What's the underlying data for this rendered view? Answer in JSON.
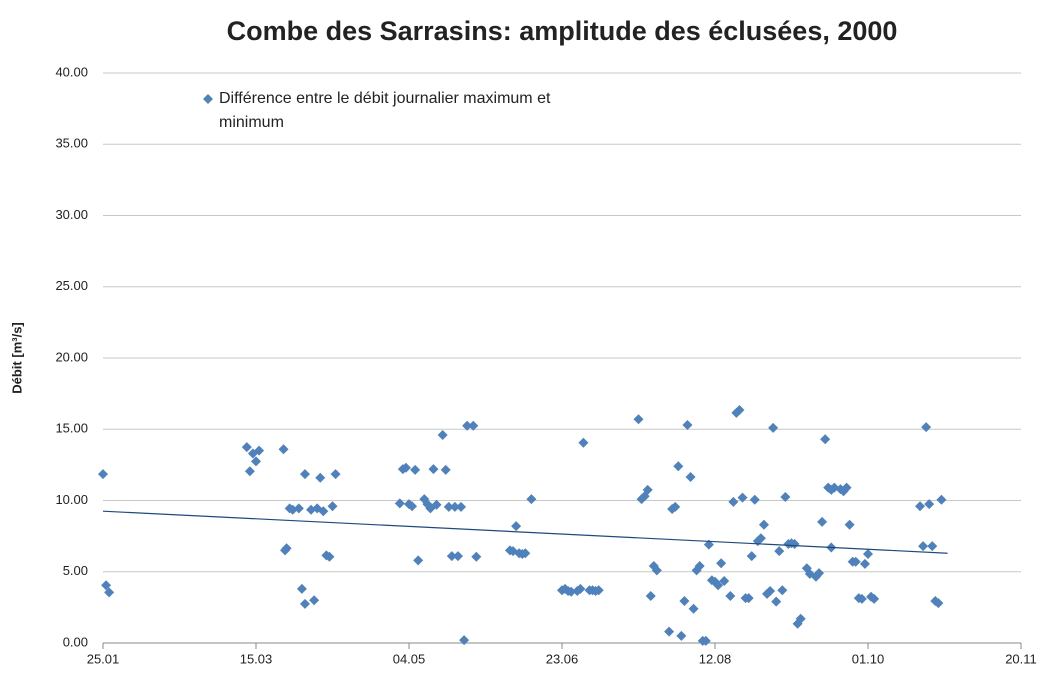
{
  "chart_data": {
    "type": "scatter",
    "title": "Combe des Sarrasins: amplitude des éclusées, 2000",
    "ylabel": "Débit [m³/s]",
    "xlim": [
      25,
      325
    ],
    "xticks": [
      {
        "value": 25,
        "label": "25.01"
      },
      {
        "value": 75,
        "label": "15.03"
      },
      {
        "value": 125,
        "label": "04.05"
      },
      {
        "value": 175,
        "label": "23.06"
      },
      {
        "value": 225,
        "label": "12.08"
      },
      {
        "value": 275,
        "label": "01.10"
      },
      {
        "value": 325,
        "label": "20.11"
      }
    ],
    "ylim": [
      0,
      40
    ],
    "yticks": [
      {
        "value": 0,
        "label": "0.00"
      },
      {
        "value": 5,
        "label": "5.00"
      },
      {
        "value": 10,
        "label": "10.00"
      },
      {
        "value": 15,
        "label": "15.00"
      },
      {
        "value": 20,
        "label": "20.00"
      },
      {
        "value": 25,
        "label": "25.00"
      },
      {
        "value": 30,
        "label": "30.00"
      },
      {
        "value": 35,
        "label": "35.00"
      },
      {
        "value": 40,
        "label": "40.00"
      }
    ],
    "grid": true,
    "series": [
      {
        "name": "Différence entre le débit journalier maximum et minimum",
        "color": "#4f81bd",
        "x": [
          25,
          26,
          27,
          72,
          73,
          74,
          75,
          76,
          84,
          84.5,
          85,
          86,
          87,
          89,
          90,
          91,
          91,
          93,
          94,
          95,
          96,
          97,
          98,
          99,
          100,
          101,
          122,
          123,
          124,
          125,
          126,
          127,
          128,
          130,
          131,
          132,
          133,
          134,
          136,
          137,
          138,
          139,
          140,
          141,
          142,
          143,
          144,
          146,
          147,
          158,
          159,
          160,
          161,
          162,
          163,
          165,
          175,
          176,
          177,
          178,
          180,
          181,
          182,
          184,
          185,
          186,
          187,
          200,
          201,
          202,
          203,
          204,
          205,
          206,
          210,
          211,
          212,
          213,
          214,
          215,
          216,
          217,
          218,
          219,
          220,
          221,
          222,
          223,
          224,
          225,
          226,
          227,
          228,
          230,
          231,
          232,
          233,
          234,
          235,
          236,
          237,
          238,
          239,
          240,
          241,
          242,
          243,
          244,
          245,
          246,
          247,
          248,
          249,
          250,
          251,
          252,
          253,
          255,
          256,
          258,
          259,
          260,
          261,
          262,
          263,
          263,
          264,
          266,
          267,
          268,
          269,
          270,
          271,
          272,
          273,
          274,
          275,
          276,
          277,
          292,
          293,
          294,
          295,
          296,
          297,
          298,
          299
        ],
        "values": [
          11.85,
          4.05,
          3.55,
          13.75,
          12.05,
          13.3,
          12.75,
          13.5,
          13.6,
          6.5,
          6.65,
          9.45,
          9.35,
          9.45,
          3.8,
          2.75,
          11.85,
          9.35,
          3.0,
          9.45,
          11.6,
          9.25,
          6.15,
          6.05,
          9.6,
          11.85,
          9.8,
          12.2,
          12.3,
          9.75,
          9.6,
          12.15,
          5.8,
          10.1,
          9.75,
          9.45,
          12.2,
          9.7,
          14.6,
          12.15,
          9.55,
          6.1,
          9.55,
          6.1,
          9.55,
          0.2,
          15.25,
          15.25,
          6.05,
          6.5,
          6.45,
          8.2,
          6.3,
          6.25,
          6.3,
          10.1,
          3.7,
          3.8,
          3.65,
          3.6,
          3.65,
          3.8,
          14.05,
          3.7,
          3.7,
          3.65,
          3.7,
          15.7,
          10.1,
          10.3,
          10.75,
          3.3,
          5.4,
          5.1,
          0.8,
          9.4,
          9.55,
          12.4,
          0.5,
          2.95,
          15.3,
          11.65,
          2.4,
          5.1,
          5.4,
          0.15,
          0.15,
          6.9,
          4.4,
          4.3,
          4.05,
          5.6,
          4.35,
          3.3,
          9.9,
          16.15,
          16.35,
          10.2,
          3.15,
          3.15,
          6.1,
          10.05,
          7.15,
          7.35,
          8.3,
          3.45,
          3.65,
          15.1,
          2.9,
          6.45,
          3.7,
          10.25,
          6.95,
          7.0,
          6.95,
          1.35,
          1.7,
          5.25,
          4.85,
          4.65,
          4.9,
          8.5,
          14.3,
          10.9,
          10.75,
          6.7,
          10.9,
          10.8,
          10.65,
          10.9,
          8.3,
          5.7,
          5.7,
          3.15,
          3.1,
          5.55,
          6.25,
          3.25,
          3.1,
          9.6,
          6.8,
          15.15,
          9.75,
          6.8,
          2.95,
          2.8,
          10.05
        ]
      }
    ],
    "trendline": {
      "color": "#1f497d",
      "x": [
        25,
        301
      ],
      "values": [
        9.25,
        6.3
      ]
    }
  }
}
